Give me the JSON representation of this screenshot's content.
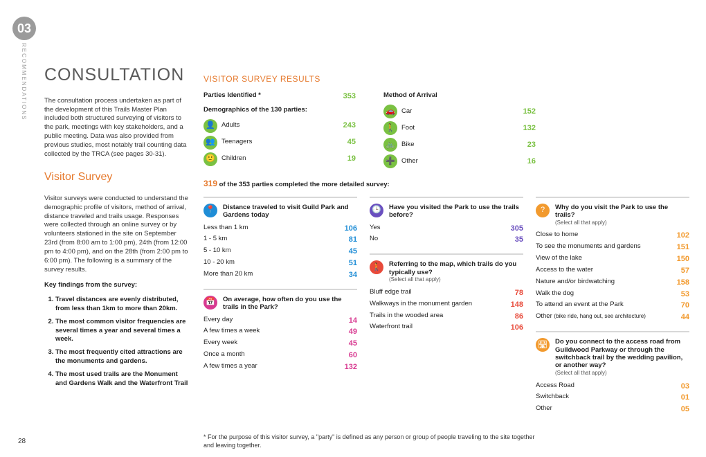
{
  "chapter": "03",
  "sideLabel": "RECOMMENDATIONS",
  "pageNumber": "28",
  "title": "CONSULTATION",
  "intro": "The consultation process undertaken as part of the development of this Trails Master Plan included both structured surveying of visitors to the park, meetings with key stakeholders, and a public meeting. Data was also provided from previous studies, most notably trail counting data collected by the TRCA (see pages 30-31).",
  "visitorSurveyHeading": "Visitor Survey",
  "visitorSurveyBody": "Visitor surveys were conducted to understand the demographic profile of visitors, method of arrival, distance traveled and trails usage. Responses were collected through an online survey or by volunteers stationed in the site on September 23rd (from 8:00 am to 1:00 pm), 24th (from 12:00 pm to 4:00 pm), and on the 28th (from 2:00 pm to 6:00 pm). The following is a summary of the survey results.",
  "kfTitle": "Key findings from the survey:",
  "kf": [
    "Travel distances are evenly distributed, from less than 1km to more than 20km.",
    "The most common visitor frequencies are several times a year and several times a week.",
    "The most frequently cited attractions are the monuments and gardens.",
    "The most used trails are the Monument and Gardens Walk and the Waterfront Trail"
  ],
  "resultsHeading": "VISITOR SURVEY RESULTS",
  "partiesLabel": "Parties Identified *",
  "partiesValue": "353",
  "demoLabel": "Demographics of the 130 parties:",
  "demographics": [
    {
      "icon": "👤",
      "label": "Adults",
      "value": "243"
    },
    {
      "icon": "👥",
      "label": "Teenagers",
      "value": "45"
    },
    {
      "icon": "🙂",
      "label": "Children",
      "value": "19"
    }
  ],
  "arrivalLabel": "Method of Arrival",
  "arrival": [
    {
      "icon": "🚗",
      "label": "Car",
      "value": "152"
    },
    {
      "icon": "🚶",
      "label": "Foot",
      "value": "132"
    },
    {
      "icon": "🚲",
      "label": "Bike",
      "value": "23"
    },
    {
      "icon": "➕",
      "label": "Other",
      "value": "16"
    }
  ],
  "completedCount": "319",
  "completedText": " of the 353 parties completed the more detailed survey:",
  "distance": {
    "title": "Distance traveled to visit Guild Park and Gardens today",
    "rows": [
      {
        "l": "Less than 1 km",
        "v": "106"
      },
      {
        "l": "1 - 5 km",
        "v": "81"
      },
      {
        "l": "5 - 10 km",
        "v": "45"
      },
      {
        "l": "10 - 20 km",
        "v": "51"
      },
      {
        "l": "More than 20 km",
        "v": "34"
      }
    ]
  },
  "frequency": {
    "title": "On average, how often do you use the trails in the Park?",
    "rows": [
      {
        "l": "Every day",
        "v": "14"
      },
      {
        "l": "A few times a week",
        "v": "49"
      },
      {
        "l": "Every week",
        "v": "45"
      },
      {
        "l": "Once a month",
        "v": "60"
      },
      {
        "l": "A few times a year",
        "v": "132"
      }
    ]
  },
  "visited": {
    "title": "Have you visited the Park to use the trails before?",
    "rows": [
      {
        "l": "Yes",
        "v": "305"
      },
      {
        "l": "No",
        "v": "35"
      }
    ]
  },
  "trails": {
    "title": "Referring to the map, which trails do you typically use?",
    "sub": "(Select all that apply)",
    "rows": [
      {
        "l": "Bluff edge trail",
        "v": "78"
      },
      {
        "l": "Walkways in the monument garden",
        "v": "148"
      },
      {
        "l": "Trails in the wooded area",
        "v": "86"
      },
      {
        "l": "Waterfront trail",
        "v": "106"
      }
    ]
  },
  "why": {
    "title": "Why do you visit the Park to use the trails?",
    "sub": "(Select all that apply)",
    "rows": [
      {
        "l": "Close to home",
        "v": "102"
      },
      {
        "l": "To see the monuments and gardens",
        "v": "151"
      },
      {
        "l": "View of the lake",
        "v": "150"
      },
      {
        "l": "Access to the water",
        "v": "57"
      },
      {
        "l": "Nature and/or birdwatching",
        "v": "158"
      },
      {
        "l": "Walk the dog",
        "v": "53"
      },
      {
        "l": "To attend an event at the Park",
        "v": "70"
      }
    ],
    "otherLabelPrefix": "Other ",
    "otherLabelSmall": "(bike ride, hang out, see architecture)",
    "otherValue": "44"
  },
  "access": {
    "title": "Do you connect to the access road from Guildwood Parkway or through the switchback trail by the wedding pavilion, or another way?",
    "sub": "(Select all that apply)",
    "rows": [
      {
        "l": "Access Road",
        "v": "03"
      },
      {
        "l": "Switchback",
        "v": "01"
      },
      {
        "l": "Other",
        "v": "05"
      }
    ]
  },
  "footnote": "* For the purpose of this visitor survey, a \"party\" is defined as any person or group of people traveling to the site together and leaving together."
}
